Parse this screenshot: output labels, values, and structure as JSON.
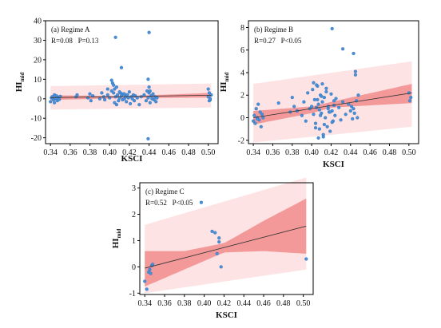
{
  "chart_data": [
    {
      "type": "scatter",
      "panel_label": "(a) Regime A",
      "stats": "R=0.08   P=0.13",
      "xlabel": "KSCI",
      "ylabel_main": "HI",
      "ylabel_sub": "mid",
      "xlim": [
        0.335,
        0.51
      ],
      "ylim": [
        -23,
        40
      ],
      "xticks": [
        "0.34",
        "0.36",
        "0.38",
        "0.40",
        "0.42",
        "0.44",
        "0.46",
        "0.48",
        "0.50"
      ],
      "yticks": [
        "-20",
        "-10",
        "0",
        "10",
        "20",
        "30",
        "40"
      ],
      "fit": {
        "x": [
          0.34,
          0.503
        ],
        "y": [
          0.6,
          1.8
        ]
      },
      "confidence_band": {
        "x": [
          0.34,
          0.42,
          0.503
        ],
        "lower": [
          -0.6,
          0.4,
          0.6
        ],
        "upper": [
          1.8,
          1.4,
          3.0
        ]
      },
      "prediction_band": {
        "x": [
          0.34,
          0.503
        ],
        "lower": [
          -5.5,
          -4.5
        ],
        "upper": [
          6.5,
          7.8
        ]
      },
      "points": {
        "x": [
          0.34,
          0.341,
          0.342,
          0.343,
          0.344,
          0.345,
          0.346,
          0.347,
          0.348,
          0.349,
          0.35,
          0.344,
          0.346,
          0.366,
          0.367,
          0.378,
          0.38,
          0.381,
          0.383,
          0.39,
          0.392,
          0.394,
          0.395,
          0.398,
          0.4,
          0.402,
          0.404,
          0.405,
          0.406,
          0.407,
          0.408,
          0.409,
          0.41,
          0.411,
          0.412,
          0.413,
          0.414,
          0.415,
          0.416,
          0.417,
          0.418,
          0.419,
          0.42,
          0.421,
          0.422,
          0.423,
          0.424,
          0.425,
          0.426,
          0.428,
          0.43,
          0.432,
          0.435,
          0.437,
          0.438,
          0.439,
          0.44,
          0.441,
          0.442,
          0.443,
          0.444,
          0.445,
          0.446,
          0.447,
          0.448,
          0.439,
          0.44,
          0.441,
          0.406,
          0.412,
          0.403,
          0.398,
          0.402,
          0.404,
          0.41,
          0.415,
          0.5,
          0.501,
          0.502,
          0.503,
          0.5,
          0.501,
          0.502,
          0.407,
          0.405,
          0.44,
          0.439
        ],
        "y": [
          -1.5,
          0.5,
          1.0,
          -0.5,
          2.0,
          0.0,
          1.5,
          -1.0,
          0.8,
          -0.3,
          1.2,
          -2.0,
          0.3,
          1.0,
          2.0,
          0.5,
          2.5,
          -1.0,
          1.5,
          0.0,
          3.0,
          1.0,
          -0.5,
          2.0,
          0.5,
          4.0,
          3.0,
          -2.0,
          1.0,
          6.0,
          2.0,
          -1.0,
          0.5,
          3.0,
          1.5,
          -0.5,
          2.5,
          0.0,
          1.0,
          -1.5,
          2.0,
          0.5,
          3.5,
          -2.5,
          1.0,
          0.0,
          2.0,
          -1.0,
          1.5,
          0.5,
          -3.0,
          1.0,
          2.0,
          -1.0,
          4.0,
          0.5,
          3.0,
          -2.0,
          1.5,
          0.0,
          2.5,
          -0.5,
          1.0,
          -1.5,
          0.5,
          10.0,
          6.0,
          4.0,
          31.5,
          16.0,
          8.0,
          5.0,
          9.5,
          7.0,
          3.5,
          2.5,
          1.0,
          3.0,
          -0.5,
          2.0,
          5.0,
          -1.0,
          0.0,
          -3.0,
          5.0,
          34.0,
          -20.5
        ]
      }
    },
    {
      "type": "scatter",
      "panel_label": "(b) Regime B",
      "stats": "R=0.27   P<0.05",
      "xlabel": "KSCI",
      "ylabel_main": "HI",
      "ylabel_sub": "mid",
      "xlim": [
        0.335,
        0.51
      ],
      "ylim": [
        -2.3,
        8.6
      ],
      "xticks": [
        "0.34",
        "0.36",
        "0.38",
        "0.40",
        "0.42",
        "0.44",
        "0.46",
        "0.48",
        "0.50"
      ],
      "yticks": [
        "-2",
        "0",
        "2",
        "4",
        "6",
        "8"
      ],
      "fit": {
        "x": [
          0.34,
          0.503
        ],
        "y": [
          0.0,
          2.2
        ]
      },
      "confidence_band": {
        "x": [
          0.34,
          0.4,
          0.42,
          0.503
        ],
        "lower": [
          -0.6,
          0.4,
          0.9,
          1.3
        ],
        "upper": [
          0.6,
          1.0,
          1.4,
          3.0
        ]
      },
      "prediction_band": {
        "x": [
          0.34,
          0.503
        ],
        "lower": [
          -2.2,
          -0.8
        ],
        "upper": [
          3.0,
          5.0
        ]
      },
      "points": {
        "x": [
          0.34,
          0.341,
          0.342,
          0.343,
          0.344,
          0.345,
          0.346,
          0.347,
          0.348,
          0.349,
          0.35,
          0.344,
          0.366,
          0.378,
          0.38,
          0.382,
          0.385,
          0.39,
          0.392,
          0.394,
          0.396,
          0.398,
          0.4,
          0.401,
          0.402,
          0.403,
          0.404,
          0.405,
          0.406,
          0.407,
          0.408,
          0.409,
          0.41,
          0.411,
          0.412,
          0.413,
          0.414,
          0.415,
          0.416,
          0.417,
          0.418,
          0.419,
          0.42,
          0.421,
          0.422,
          0.423,
          0.424,
          0.425,
          0.428,
          0.43,
          0.432,
          0.435,
          0.438,
          0.44,
          0.441,
          0.442,
          0.443,
          0.444,
          0.445,
          0.446,
          0.447,
          0.448,
          0.5,
          0.501,
          0.502,
          0.405,
          0.407,
          0.409,
          0.411,
          0.413,
          0.415,
          0.417,
          0.402,
          0.404,
          0.406,
          0.408,
          0.41,
          0.412,
          0.419,
          0.421,
          0.423
        ],
        "y": [
          -0.3,
          0.2,
          -0.5,
          0.8,
          0.0,
          1.2,
          -0.2,
          0.5,
          -0.8,
          0.3,
          0.0,
          -0.1,
          1.3,
          0.5,
          1.8,
          1.0,
          0.6,
          0.2,
          1.4,
          -0.3,
          2.2,
          0.8,
          1.0,
          2.5,
          0.3,
          1.6,
          -0.5,
          0.9,
          2.8,
          1.2,
          -1.0,
          2.0,
          0.4,
          3.0,
          -1.5,
          1.8,
          0.0,
          2.6,
          -0.8,
          1.0,
          0.5,
          -1.2,
          2.1,
          0.6,
          -0.3,
          1.5,
          0.2,
          1.7,
          0.9,
          -0.2,
          1.4,
          0.3,
          1.2,
          0.6,
          1.0,
          -0.1,
          0.8,
          0.4,
          3.8,
          1.5,
          0.0,
          2.0,
          2.2,
          1.5,
          1.8,
          2.9,
          -1.8,
          0.2,
          1.4,
          -0.6,
          2.3,
          0.8,
          3.1,
          -0.9,
          1.6,
          0.7,
          1.9,
          -1.7,
          0.5,
          -0.4,
          1.1
        ]
      },
      "outliers": {
        "x": [
          0.421,
          0.432,
          0.443,
          0.445
        ],
        "y": [
          7.9,
          6.1,
          5.7,
          4.1
        ]
      }
    },
    {
      "type": "scatter",
      "panel_label": "(c) Regime C",
      "stats": "R=0.52   P<0.05",
      "xlabel": "KSCI",
      "ylabel_main": "HI",
      "ylabel_sub": "mid",
      "xlim": [
        0.335,
        0.51
      ],
      "ylim": [
        -1.05,
        3.2
      ],
      "xticks": [
        "0.34",
        "0.36",
        "0.38",
        "0.40",
        "0.42",
        "0.44",
        "0.46",
        "0.48",
        "0.50"
      ],
      "yticks": [
        "-1",
        "0",
        "1",
        "2",
        "3"
      ],
      "fit": {
        "x": [
          0.34,
          0.503
        ],
        "y": [
          -0.05,
          1.55
        ]
      },
      "confidence_band": {
        "x": [
          0.34,
          0.38,
          0.42,
          0.46,
          0.503
        ],
        "lower": [
          -0.75,
          -0.1,
          0.55,
          0.6,
          0.5
        ],
        "upper": [
          0.6,
          0.6,
          0.9,
          1.75,
          2.6
        ]
      },
      "prediction_band": {
        "x": [
          0.34,
          0.503
        ],
        "lower": [
          -1.0,
          -0.1
        ],
        "upper": [
          1.6,
          3.4
        ]
      },
      "points": {
        "x": [
          0.34,
          0.342,
          0.344,
          0.346,
          0.347,
          0.348,
          0.345,
          0.397,
          0.408,
          0.411,
          0.413,
          0.415,
          0.417,
          0.415,
          0.503
        ],
        "y": [
          -0.55,
          -0.85,
          -0.2,
          -0.25,
          0.05,
          0.1,
          -0.1,
          2.45,
          1.35,
          1.3,
          0.5,
          1.1,
          0.0,
          0.95,
          0.3
        ]
      }
    }
  ]
}
